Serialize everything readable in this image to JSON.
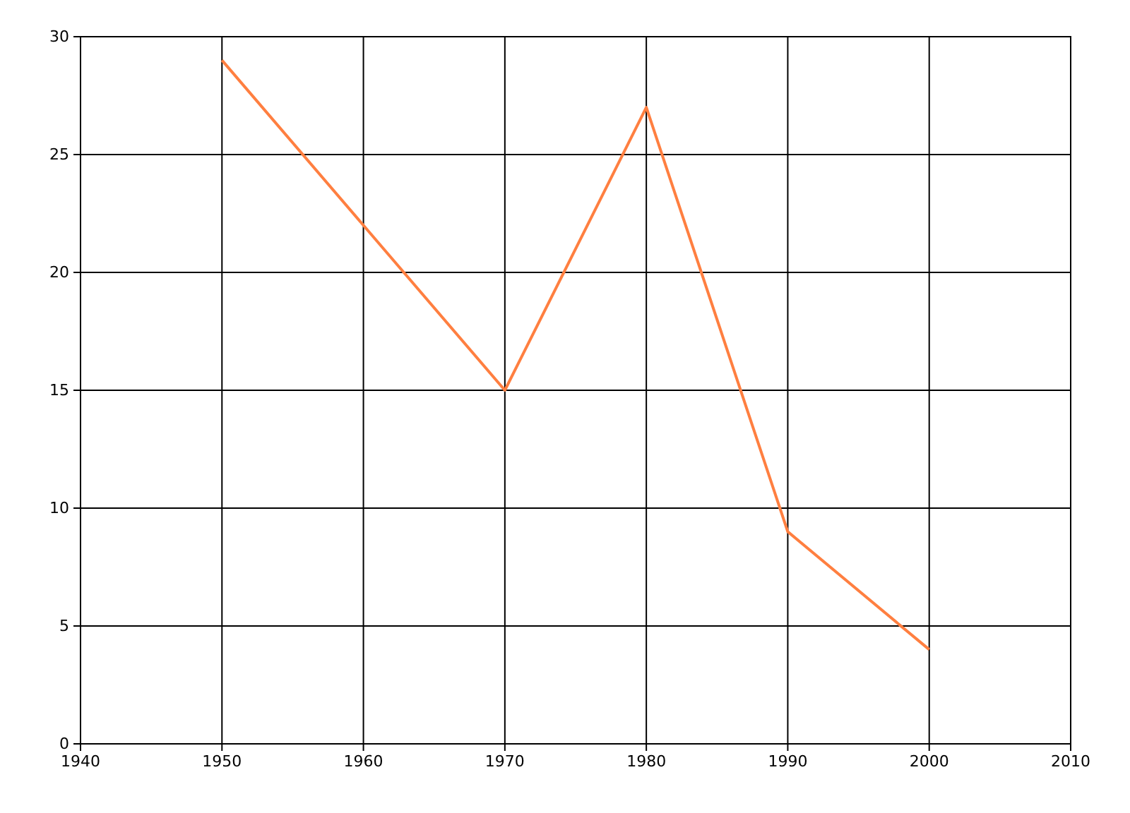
{
  "chart_data": {
    "type": "line",
    "x": [
      1950,
      1960,
      1970,
      1980,
      1990,
      2000
    ],
    "series": [
      {
        "color": "#ff7f40",
        "values": [
          29,
          22,
          15,
          27,
          9,
          4
        ]
      }
    ],
    "xlim": [
      1940,
      2010
    ],
    "xticks": [
      1940,
      1950,
      1960,
      1970,
      1980,
      1990,
      2000,
      2010
    ],
    "ylim": [
      0,
      30
    ],
    "yticks": [
      0,
      5,
      10,
      15,
      20,
      25,
      30
    ],
    "grid": true,
    "marker": "none",
    "line_style": "solid"
  }
}
